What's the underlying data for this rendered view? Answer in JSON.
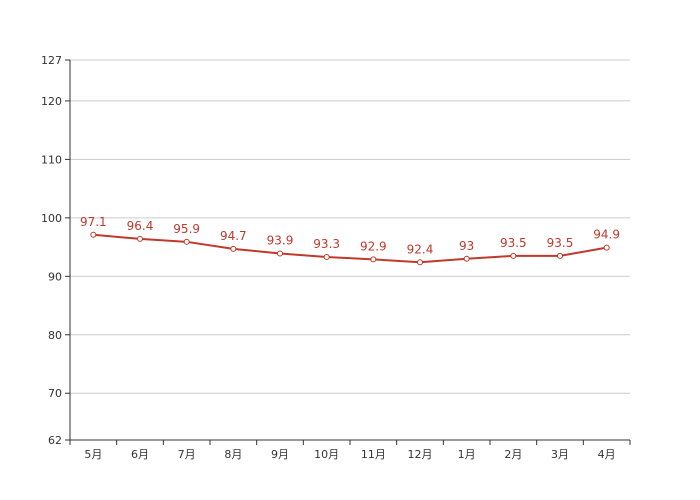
{
  "chart_data": {
    "type": "line",
    "categories": [
      "5月",
      "6月",
      "7月",
      "8月",
      "9月",
      "10月",
      "11月",
      "12月",
      "1月",
      "2月",
      "3月",
      "4月"
    ],
    "series": [
      {
        "values": [
          97.1,
          96.4,
          95.9,
          94.7,
          93.9,
          93.3,
          92.9,
          92.4,
          93,
          93.5,
          93.5,
          94.9
        ]
      }
    ],
    "ylim": [
      62,
      127
    ],
    "yticks": [
      62,
      70,
      80,
      90,
      100,
      110,
      120,
      127
    ],
    "grid": true,
    "line_color": "#c0392b",
    "label_color": "#c0392b",
    "marker_fill": "#ffffff",
    "grid_color": "#cccccc",
    "axis_color": "#333333"
  }
}
